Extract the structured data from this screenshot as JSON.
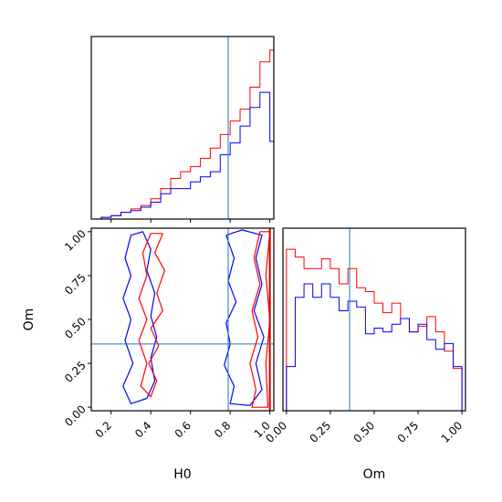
{
  "chart_data": [
    {
      "type": "area",
      "panel": "H0 marginal",
      "bins": [
        0.15,
        0.2,
        0.25,
        0.3,
        0.35,
        0.4,
        0.45,
        0.5,
        0.55,
        0.6,
        0.65,
        0.7,
        0.75,
        0.8,
        0.85,
        0.9,
        0.95,
        1.0
      ],
      "series": [
        {
          "color": "#ff0000",
          "x": [
            0.12,
            0.15,
            0.2,
            0.25,
            0.3,
            0.35,
            0.4,
            0.45,
            0.5,
            0.55,
            0.6,
            0.65,
            0.7,
            0.75,
            0.8,
            0.85,
            0.9,
            0.95,
            1.0,
            1.02
          ],
          "values": [
            0,
            0.01,
            0.02,
            0.04,
            0.06,
            0.08,
            0.12,
            0.18,
            0.24,
            0.28,
            0.31,
            0.36,
            0.42,
            0.5,
            0.58,
            0.65,
            0.78,
            0.93,
            1.0,
            0.05
          ]
        },
        {
          "color": "#0000ff",
          "x": [
            0.12,
            0.15,
            0.2,
            0.25,
            0.3,
            0.35,
            0.4,
            0.45,
            0.5,
            0.55,
            0.6,
            0.65,
            0.7,
            0.75,
            0.8,
            0.85,
            0.9,
            0.95,
            1.0,
            1.02
          ],
          "values": [
            0,
            0.01,
            0.02,
            0.04,
            0.05,
            0.07,
            0.1,
            0.15,
            0.18,
            0.18,
            0.22,
            0.25,
            0.28,
            0.38,
            0.45,
            0.55,
            0.66,
            0.75,
            0.46,
            0.05
          ]
        }
      ],
      "truth_line": 0.79,
      "xlim": [
        0.1,
        1.02
      ]
    },
    {
      "type": "scatter",
      "panel": "H0 vs Om contours",
      "xlabel": "H0",
      "ylabel": "Om",
      "xticks": [
        "0.2",
        "0.4",
        "0.6",
        "0.8",
        "1.0"
      ],
      "yticks": [
        "0.00",
        "0.25",
        "0.50",
        "0.75",
        "1.00"
      ],
      "xlim": [
        0.1,
        1.02
      ],
      "ylim": [
        -0.02,
        1.02
      ],
      "truth_x": 0.79,
      "truth_y": 0.36,
      "contours": [
        {
          "color": "#0000ff",
          "points": [
            [
              0.3,
              0.98
            ],
            [
              0.27,
              0.85
            ],
            [
              0.3,
              0.75
            ],
            [
              0.26,
              0.62
            ],
            [
              0.3,
              0.5
            ],
            [
              0.27,
              0.38
            ],
            [
              0.31,
              0.25
            ],
            [
              0.26,
              0.12
            ],
            [
              0.3,
              0.02
            ],
            [
              0.38,
              0.05
            ],
            [
              0.42,
              0.15
            ],
            [
              0.4,
              0.28
            ],
            [
              0.43,
              0.4
            ],
            [
              0.4,
              0.52
            ],
            [
              0.42,
              0.65
            ],
            [
              0.38,
              0.78
            ],
            [
              0.4,
              0.9
            ],
            [
              0.36,
              1.0
            ],
            [
              0.3,
              0.98
            ]
          ]
        },
        {
          "color": "#0000ff",
          "points": [
            [
              0.78,
              0.98
            ],
            [
              0.82,
              0.85
            ],
            [
              0.79,
              0.72
            ],
            [
              0.83,
              0.6
            ],
            [
              0.78,
              0.48
            ],
            [
              0.8,
              0.36
            ],
            [
              0.77,
              0.24
            ],
            [
              0.82,
              0.12
            ],
            [
              0.8,
              0.02
            ],
            [
              0.9,
              0.01
            ],
            [
              0.96,
              0.1
            ],
            [
              0.93,
              0.25
            ],
            [
              0.97,
              0.4
            ],
            [
              0.92,
              0.55
            ],
            [
              0.96,
              0.7
            ],
            [
              0.93,
              0.85
            ],
            [
              0.96,
              0.98
            ],
            [
              0.86,
              1.01
            ],
            [
              0.78,
              0.98
            ]
          ]
        },
        {
          "color": "#ff0000",
          "points": [
            [
              0.46,
              0.99
            ],
            [
              0.42,
              0.88
            ],
            [
              0.47,
              0.78
            ],
            [
              0.43,
              0.65
            ],
            [
              0.46,
              0.55
            ],
            [
              0.4,
              0.45
            ],
            [
              0.44,
              0.35
            ],
            [
              0.39,
              0.25
            ],
            [
              0.43,
              0.15
            ],
            [
              0.4,
              0.06
            ],
            [
              0.35,
              0.12
            ],
            [
              0.38,
              0.25
            ],
            [
              0.34,
              0.38
            ],
            [
              0.38,
              0.5
            ],
            [
              0.34,
              0.62
            ],
            [
              0.38,
              0.75
            ],
            [
              0.36,
              0.88
            ],
            [
              0.4,
              0.99
            ],
            [
              0.46,
              0.99
            ]
          ]
        },
        {
          "color": "#ff0000",
          "points": [
            [
              0.95,
              1.0
            ],
            [
              0.92,
              0.85
            ],
            [
              0.95,
              0.7
            ],
            [
              0.91,
              0.55
            ],
            [
              0.94,
              0.4
            ],
            [
              0.9,
              0.25
            ],
            [
              0.93,
              0.1
            ],
            [
              0.91,
              0.0
            ],
            [
              0.99,
              0.0
            ],
            [
              0.98,
              0.25
            ],
            [
              1.0,
              0.5
            ],
            [
              0.98,
              0.75
            ],
            [
              1.0,
              1.0
            ],
            [
              0.95,
              1.0
            ]
          ]
        }
      ]
    },
    {
      "type": "area",
      "panel": "Om marginal",
      "xlabel": "Om",
      "xticks": [
        "0.00",
        "0.25",
        "0.50",
        "0.75",
        "1.00"
      ],
      "xlim": [
        -0.02,
        1.02
      ],
      "truth_line": 0.36,
      "series": [
        {
          "color": "#ff0000",
          "x": [
            -0.02,
            0.0,
            0.05,
            0.1,
            0.15,
            0.2,
            0.25,
            0.3,
            0.35,
            0.4,
            0.45,
            0.5,
            0.55,
            0.6,
            0.65,
            0.7,
            0.75,
            0.8,
            0.85,
            0.9,
            0.95,
            1.0
          ],
          "values": [
            0,
            0.84,
            0.8,
            0.74,
            0.74,
            0.79,
            0.74,
            0.66,
            0.74,
            0.64,
            0.62,
            0.56,
            0.51,
            0.56,
            0.48,
            0.41,
            0.44,
            0.49,
            0.41,
            0.31,
            0.22,
            0.0
          ]
        },
        {
          "color": "#0000ff",
          "x": [
            -0.02,
            0.0,
            0.05,
            0.1,
            0.15,
            0.2,
            0.25,
            0.3,
            0.35,
            0.4,
            0.45,
            0.5,
            0.55,
            0.6,
            0.65,
            0.7,
            0.75,
            0.8,
            0.85,
            0.9,
            0.95,
            1.0
          ],
          "values": [
            0,
            0.23,
            0.59,
            0.66,
            0.59,
            0.66,
            0.59,
            0.52,
            0.57,
            0.54,
            0.4,
            0.43,
            0.41,
            0.45,
            0.48,
            0.41,
            0.45,
            0.37,
            0.32,
            0.35,
            0.23,
            0.1
          ]
        }
      ]
    }
  ],
  "colors": {
    "truth": "#1f77b4",
    "series_a": "#ff0000",
    "series_b": "#0000ff"
  }
}
